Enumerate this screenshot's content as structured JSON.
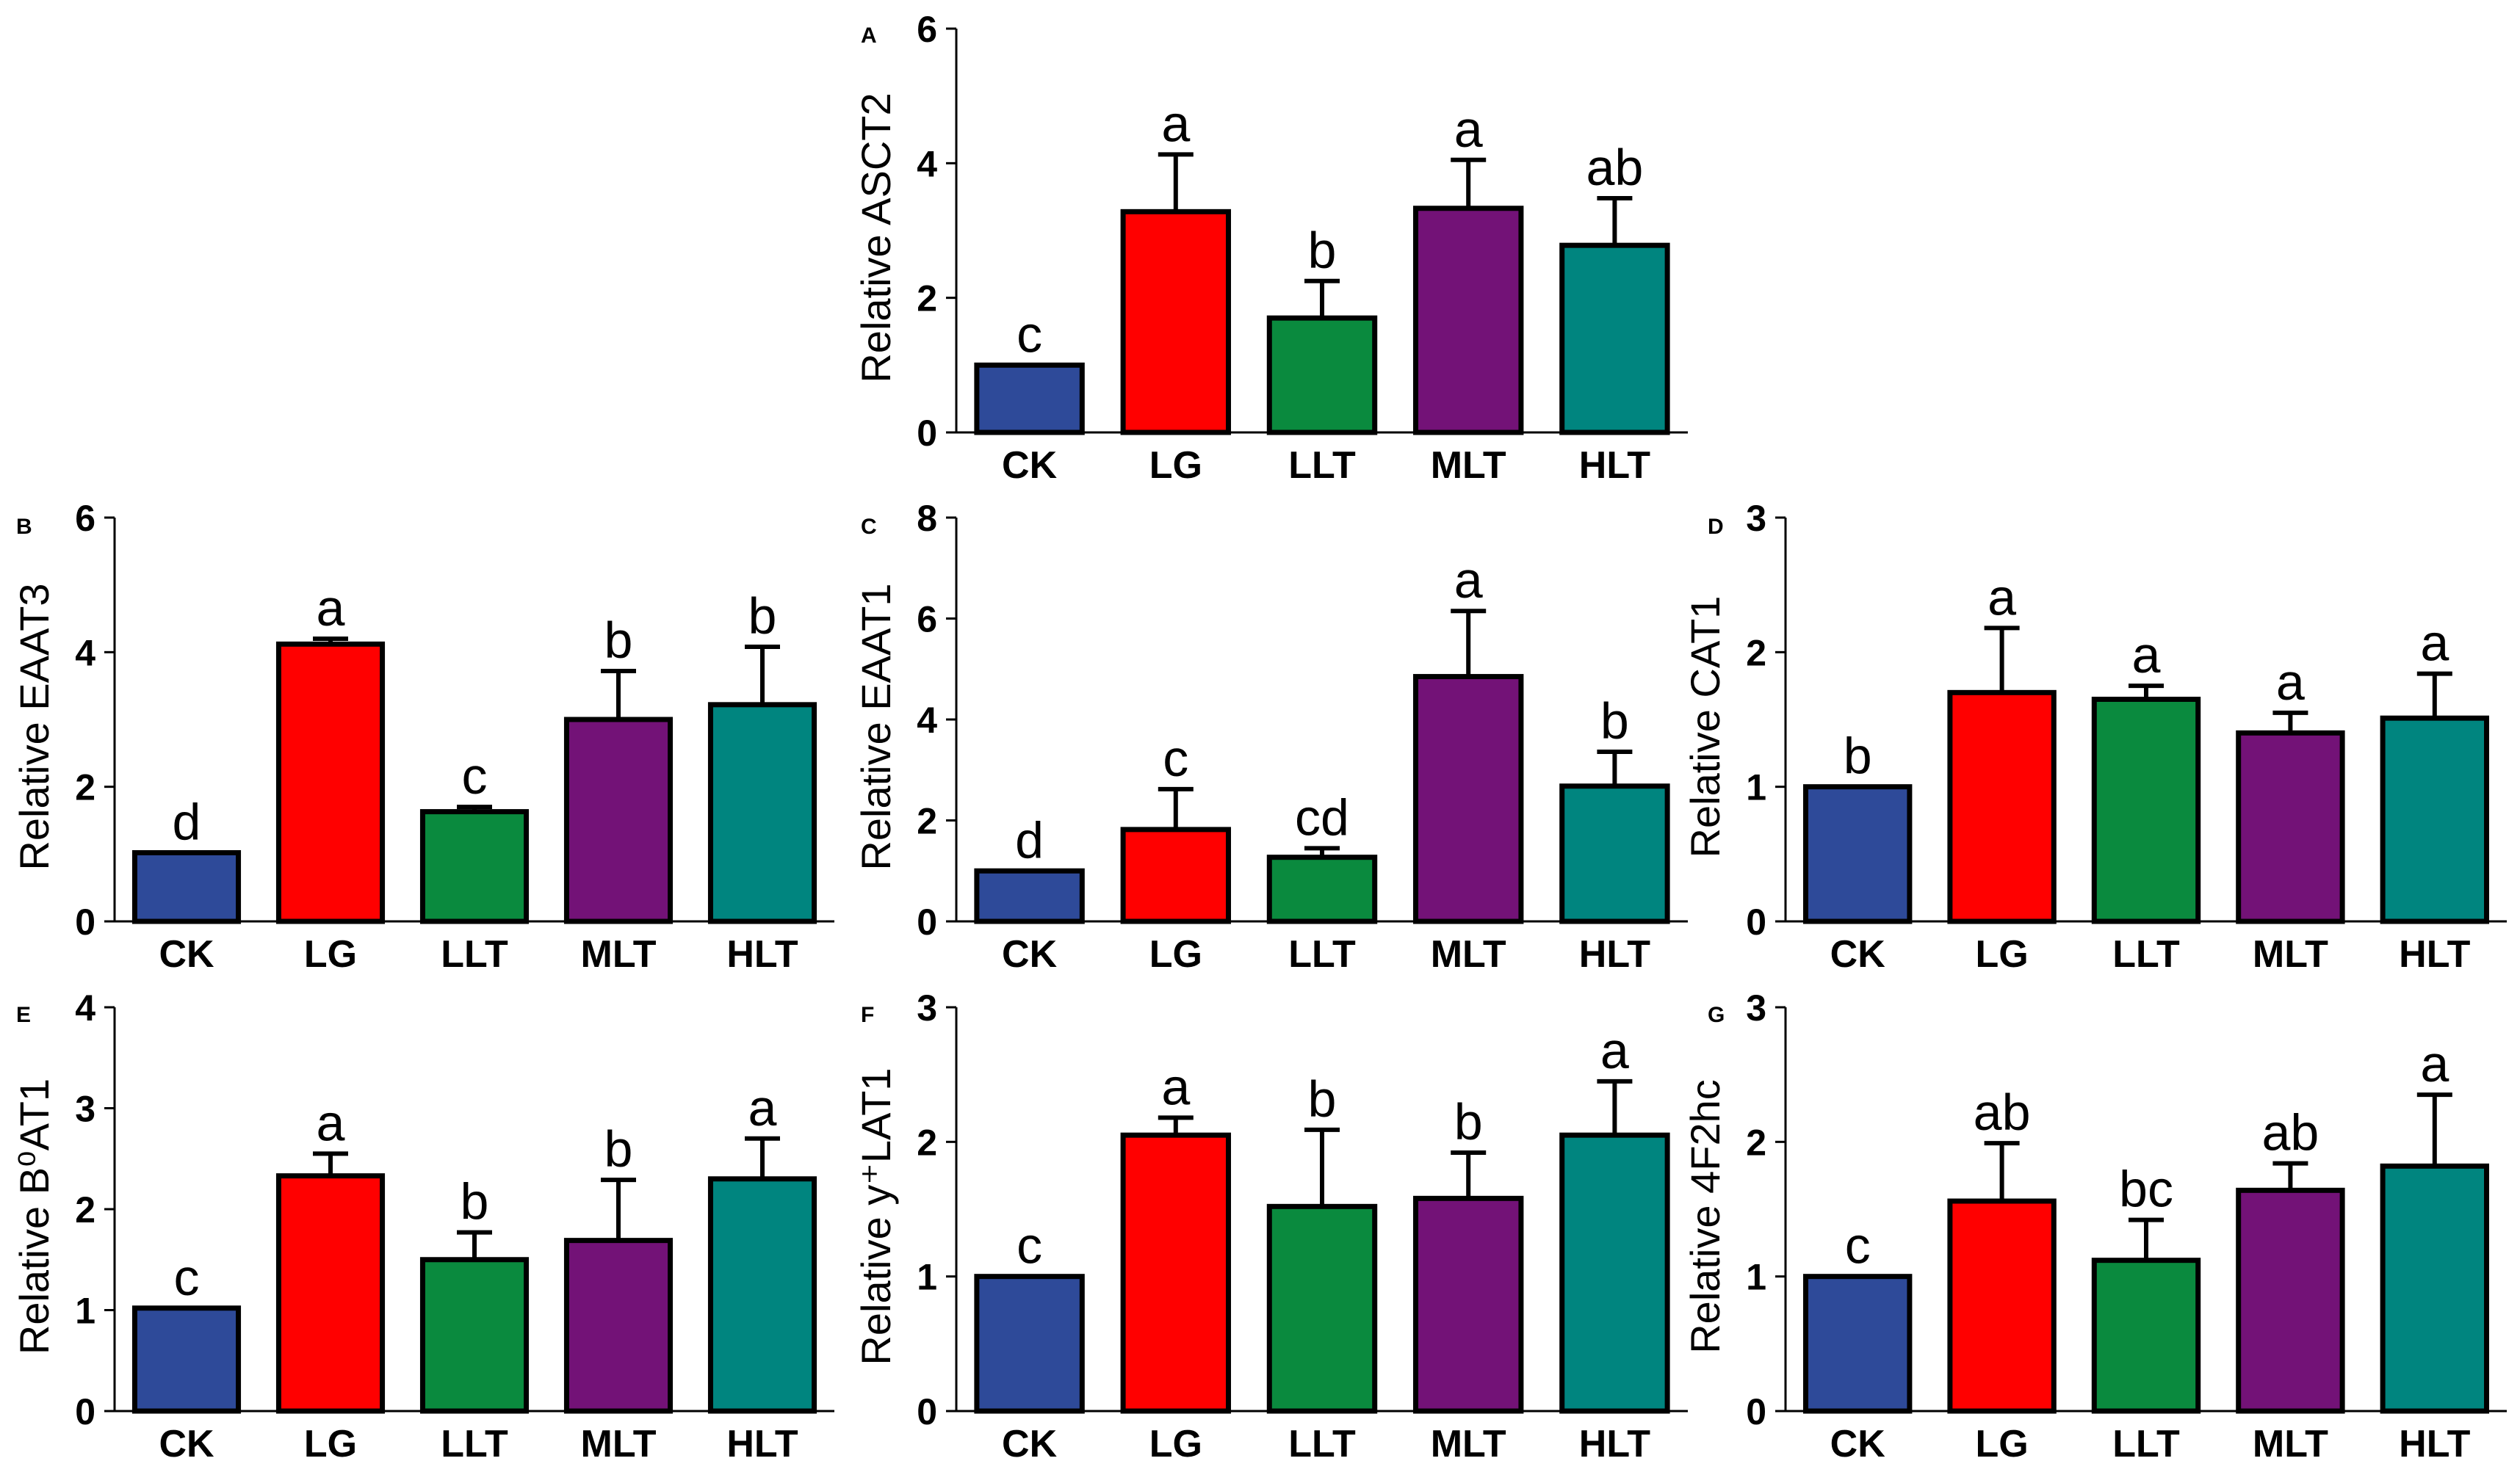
{
  "chart_data": [
    {
      "type": "bar",
      "panel": "A",
      "ylabel": "Relative ASCT2",
      "categories": [
        "CK",
        "LG",
        "LLT",
        "MLT",
        "HLT"
      ],
      "values": [
        1.0,
        3.28,
        1.7,
        3.33,
        2.78
      ],
      "errors": [
        0.0,
        0.85,
        0.55,
        0.72,
        0.7
      ],
      "significance": [
        "c",
        "a",
        "b",
        "a",
        "ab"
      ],
      "ylim": [
        0,
        6
      ],
      "yticks": [
        "0",
        "2",
        "4",
        "6"
      ],
      "colors": [
        "#2e4a99",
        "#ff0000",
        "#0a8a3e",
        "#731277",
        "#00857f"
      ],
      "grid": false
    },
    {
      "type": "bar",
      "panel": "B",
      "ylabel": "Relative EAAT3",
      "categories": [
        "CK",
        "LG",
        "LLT",
        "MLT",
        "HLT"
      ],
      "values": [
        1.02,
        4.12,
        1.63,
        3.0,
        3.22
      ],
      "errors": [
        0.0,
        0.08,
        0.07,
        0.72,
        0.86
      ],
      "significance": [
        "d",
        "a",
        "c",
        "b",
        "b"
      ],
      "ylim": [
        0,
        6
      ],
      "yticks": [
        "0",
        "2",
        "4",
        "6"
      ],
      "colors": [
        "#2e4a99",
        "#ff0000",
        "#0a8a3e",
        "#731277",
        "#00857f"
      ],
      "grid": false
    },
    {
      "type": "bar",
      "panel": "C",
      "ylabel": "Relative EAAT1",
      "categories": [
        "CK",
        "LG",
        "LLT",
        "MLT",
        "HLT"
      ],
      "values": [
        1.0,
        1.82,
        1.27,
        4.85,
        2.68
      ],
      "errors": [
        0.0,
        0.8,
        0.18,
        1.3,
        0.68
      ],
      "significance": [
        "d",
        "c",
        "cd",
        "a",
        "b"
      ],
      "ylim": [
        0,
        8
      ],
      "yticks": [
        "0",
        "2",
        "4",
        "6",
        "8"
      ],
      "colors": [
        "#2e4a99",
        "#ff0000",
        "#0a8a3e",
        "#731277",
        "#00857f"
      ],
      "grid": false
    },
    {
      "type": "bar",
      "panel": "D",
      "ylabel": "Relative CAT1",
      "categories": [
        "CK",
        "LG",
        "LLT",
        "MLT",
        "HLT"
      ],
      "values": [
        1.0,
        1.7,
        1.65,
        1.4,
        1.51
      ],
      "errors": [
        0.0,
        0.48,
        0.1,
        0.15,
        0.33
      ],
      "significance": [
        "b",
        "a",
        "a",
        "a",
        "a"
      ],
      "ylim": [
        0,
        3
      ],
      "yticks": [
        "0",
        "1",
        "2",
        "3"
      ],
      "colors": [
        "#2e4a99",
        "#ff0000",
        "#0a8a3e",
        "#731277",
        "#00857f"
      ],
      "grid": false
    },
    {
      "type": "bar",
      "panel": "E",
      "ylabel": "Relative B⁰AT1",
      "categories": [
        "CK",
        "LG",
        "LLT",
        "MLT",
        "HLT"
      ],
      "values": [
        1.02,
        2.33,
        1.5,
        1.69,
        2.3
      ],
      "errors": [
        0.0,
        0.22,
        0.27,
        0.6,
        0.4
      ],
      "significance": [
        "c",
        "a",
        "b",
        "b",
        "a"
      ],
      "ylim": [
        0,
        4
      ],
      "yticks": [
        "0",
        "1",
        "2",
        "3",
        "4"
      ],
      "colors": [
        "#2e4a99",
        "#ff0000",
        "#0a8a3e",
        "#731277",
        "#00857f"
      ],
      "grid": false
    },
    {
      "type": "bar",
      "panel": "F",
      "ylabel": "Relative y⁺LAT1",
      "categories": [
        "CK",
        "LG",
        "LLT",
        "MLT",
        "HLT"
      ],
      "values": [
        1.0,
        2.05,
        1.52,
        1.58,
        2.05
      ],
      "errors": [
        0.0,
        0.13,
        0.57,
        0.34,
        0.4
      ],
      "significance": [
        "c",
        "a",
        "b",
        "b",
        "a"
      ],
      "ylim": [
        0,
        3
      ],
      "yticks": [
        "0",
        "1",
        "2",
        "3"
      ],
      "colors": [
        "#2e4a99",
        "#ff0000",
        "#0a8a3e",
        "#731277",
        "#00857f"
      ],
      "grid": false
    },
    {
      "type": "bar",
      "panel": "G",
      "ylabel": "Relative 4F2hc",
      "categories": [
        "CK",
        "LG",
        "LLT",
        "MLT",
        "HLT"
      ],
      "values": [
        1.0,
        1.56,
        1.12,
        1.64,
        1.82
      ],
      "errors": [
        0.0,
        0.43,
        0.3,
        0.2,
        0.53
      ],
      "significance": [
        "c",
        "ab",
        "bc",
        "ab",
        "a"
      ],
      "ylim": [
        0,
        3
      ],
      "yticks": [
        "0",
        "1",
        "2",
        "3"
      ],
      "colors": [
        "#2e4a99",
        "#ff0000",
        "#0a8a3e",
        "#731277",
        "#00857f"
      ],
      "grid": false
    }
  ]
}
